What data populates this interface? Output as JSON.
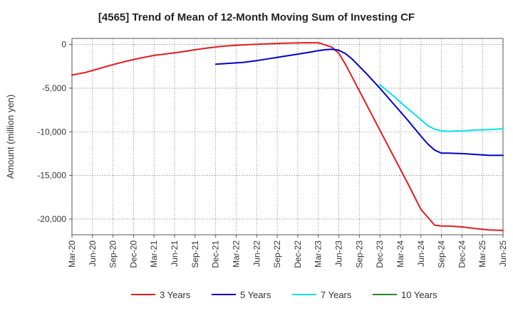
{
  "chart_data": {
    "type": "line",
    "title": "[4565]  Trend of Mean of 12-Month Moving Sum of Investing CF",
    "xlabel": "",
    "ylabel": "Amount (million yen)",
    "x_ticks": [
      "Mar-20",
      "Jun-20",
      "Sep-20",
      "Dec-20",
      "Mar-21",
      "Jun-21",
      "Sep-21",
      "Dec-21",
      "Mar-22",
      "Jun-22",
      "Sep-22",
      "Dec-22",
      "Mar-23",
      "Jun-23",
      "Sep-23",
      "Dec-23",
      "Mar-24",
      "Jun-24",
      "Sep-24",
      "Dec-24",
      "Mar-25",
      "Jun-25"
    ],
    "y_ticks": [
      0,
      -5000,
      -10000,
      -15000,
      -20000
    ],
    "y_tick_labels": [
      "0",
      "-5,000",
      "-10,000",
      "-15,000",
      "-20,000"
    ],
    "ylim": [
      -21800,
      700
    ],
    "x_index_range": [
      0,
      63
    ],
    "grid": true,
    "legend_position": "bottom",
    "series": [
      {
        "name": "3 Years",
        "color": "#e41a1c",
        "x": [
          0,
          2,
          4,
          6,
          8,
          10,
          12,
          14,
          16,
          18,
          20,
          22,
          24,
          26,
          28,
          30,
          32,
          34,
          36,
          38,
          39,
          40,
          41,
          43,
          45,
          47,
          49,
          51,
          53,
          54,
          55,
          57,
          59,
          61,
          63
        ],
        "values": [
          -3500,
          -3200,
          -2750,
          -2300,
          -1900,
          -1550,
          -1250,
          -1050,
          -850,
          -600,
          -380,
          -200,
          -80,
          0,
          60,
          120,
          170,
          200,
          200,
          -300,
          -1000,
          -2300,
          -3800,
          -6800,
          -9800,
          -12800,
          -15800,
          -18900,
          -20700,
          -20800,
          -20800,
          -20900,
          -21100,
          -21250,
          -21300
        ]
      },
      {
        "name": "5 Years",
        "color": "#0000cc",
        "x": [
          21,
          23,
          25,
          27,
          29,
          31,
          33,
          35,
          36,
          37,
          38,
          39,
          40,
          41,
          43,
          45,
          47,
          49,
          51,
          52,
          53,
          54,
          55,
          57,
          59,
          61,
          63
        ],
        "values": [
          -2250,
          -2150,
          -2050,
          -1850,
          -1600,
          -1350,
          -1100,
          -850,
          -700,
          -600,
          -550,
          -650,
          -1050,
          -1700,
          -3300,
          -5000,
          -6800,
          -8600,
          -10500,
          -11400,
          -12100,
          -12450,
          -12450,
          -12500,
          -12600,
          -12700,
          -12700
        ]
      },
      {
        "name": "7 Years",
        "color": "#00e5ee",
        "x": [
          45,
          47,
          49,
          51,
          52,
          53,
          54,
          55,
          57,
          59,
          61,
          63
        ],
        "values": [
          -4600,
          -5900,
          -7300,
          -8600,
          -9300,
          -9700,
          -9900,
          -9950,
          -9900,
          -9800,
          -9750,
          -9650
        ]
      },
      {
        "name": "10 Years",
        "color": "#228b22",
        "x": [],
        "values": []
      }
    ]
  }
}
